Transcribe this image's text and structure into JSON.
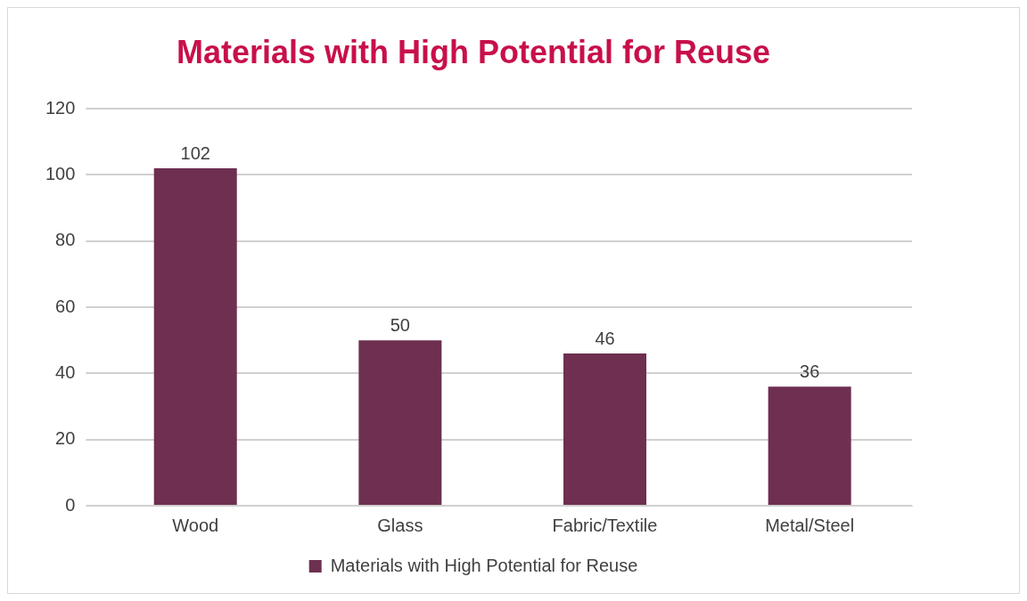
{
  "chart_data": {
    "type": "bar",
    "title": "Materials with High Potential for Reuse",
    "categories": [
      "Wood",
      "Glass",
      "Fabric/Textile",
      "Metal/Steel"
    ],
    "series": [
      {
        "name": "Materials with High Potential for Reuse",
        "color": "#6e2f50",
        "values": [
          102,
          50,
          46,
          36
        ]
      }
    ],
    "ylim": [
      0,
      120
    ],
    "yticks": [
      0,
      20,
      40,
      60,
      80,
      100,
      120
    ],
    "grid": "y",
    "legend": "bottom",
    "data_labels": true
  }
}
